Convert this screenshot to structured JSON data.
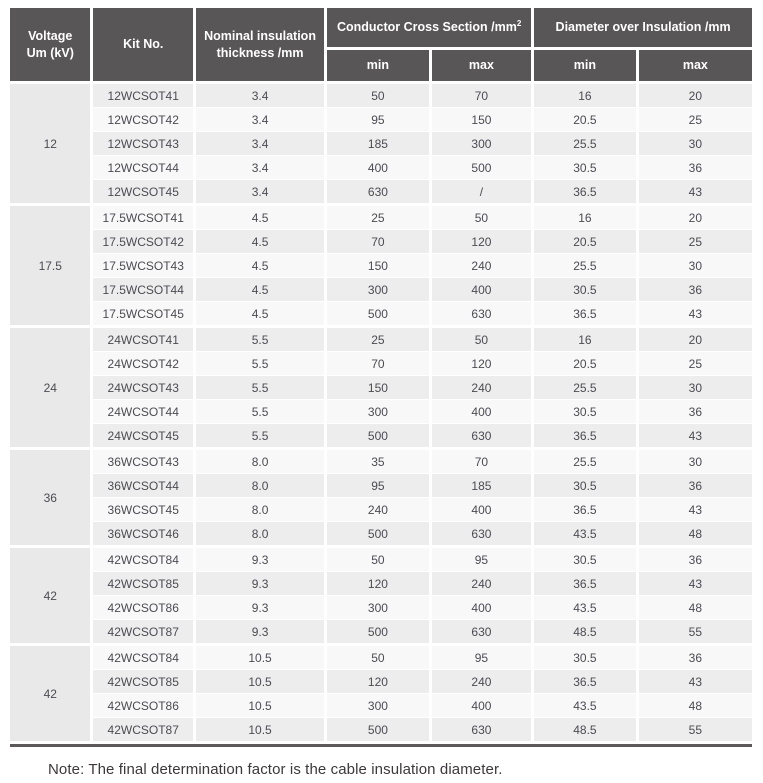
{
  "table": {
    "headers": {
      "voltage_line1": "Voltage",
      "voltage_line2": "Um (kV)",
      "kit_no": "Kit No.",
      "nominal_line1": "Nominal insulation",
      "nominal_line2": "thickness /mm",
      "conductor_group": "Conductor Cross Section /mm",
      "conductor_sup": "2",
      "diameter_group": "Diameter over Insulation /mm",
      "min": "min",
      "max": "max"
    },
    "groups": [
      {
        "voltage": "12",
        "rows": [
          {
            "kit": "12WCSOT41",
            "thickness": "3.4",
            "cs_min": "50",
            "cs_max": "70",
            "dia_min": "16",
            "dia_max": "20"
          },
          {
            "kit": "12WCSOT42",
            "thickness": "3.4",
            "cs_min": "95",
            "cs_max": "150",
            "dia_min": "20.5",
            "dia_max": "25"
          },
          {
            "kit": "12WCSOT43",
            "thickness": "3.4",
            "cs_min": "185",
            "cs_max": "300",
            "dia_min": "25.5",
            "dia_max": "30"
          },
          {
            "kit": "12WCSOT44",
            "thickness": "3.4",
            "cs_min": "400",
            "cs_max": "500",
            "dia_min": "30.5",
            "dia_max": "36"
          },
          {
            "kit": "12WCSOT45",
            "thickness": "3.4",
            "cs_min": "630",
            "cs_max": "/",
            "dia_min": "36.5",
            "dia_max": "43"
          }
        ]
      },
      {
        "voltage": "17.5",
        "rows": [
          {
            "kit": "17.5WCSOT41",
            "thickness": "4.5",
            "cs_min": "25",
            "cs_max": "50",
            "dia_min": "16",
            "dia_max": "20"
          },
          {
            "kit": "17.5WCSOT42",
            "thickness": "4.5",
            "cs_min": "70",
            "cs_max": "120",
            "dia_min": "20.5",
            "dia_max": "25"
          },
          {
            "kit": "17.5WCSOT43",
            "thickness": "4.5",
            "cs_min": "150",
            "cs_max": "240",
            "dia_min": "25.5",
            "dia_max": "30"
          },
          {
            "kit": "17.5WCSOT44",
            "thickness": "4.5",
            "cs_min": "300",
            "cs_max": "400",
            "dia_min": "30.5",
            "dia_max": "36"
          },
          {
            "kit": "17.5WCSOT45",
            "thickness": "4.5",
            "cs_min": "500",
            "cs_max": "630",
            "dia_min": "36.5",
            "dia_max": "43"
          }
        ]
      },
      {
        "voltage": "24",
        "rows": [
          {
            "kit": "24WCSOT41",
            "thickness": "5.5",
            "cs_min": "25",
            "cs_max": "50",
            "dia_min": "16",
            "dia_max": "20"
          },
          {
            "kit": "24WCSOT42",
            "thickness": "5.5",
            "cs_min": "70",
            "cs_max": "120",
            "dia_min": "20.5",
            "dia_max": "25"
          },
          {
            "kit": "24WCSOT43",
            "thickness": "5.5",
            "cs_min": "150",
            "cs_max": "240",
            "dia_min": "25.5",
            "dia_max": "30"
          },
          {
            "kit": "24WCSOT44",
            "thickness": "5.5",
            "cs_min": "300",
            "cs_max": "400",
            "dia_min": "30.5",
            "dia_max": "36"
          },
          {
            "kit": "24WCSOT45",
            "thickness": "5.5",
            "cs_min": "500",
            "cs_max": "630",
            "dia_min": "36.5",
            "dia_max": "43"
          }
        ]
      },
      {
        "voltage": "36",
        "rows": [
          {
            "kit": "36WCSOT43",
            "thickness": "8.0",
            "cs_min": "35",
            "cs_max": "70",
            "dia_min": "25.5",
            "dia_max": "30"
          },
          {
            "kit": "36WCSOT44",
            "thickness": "8.0",
            "cs_min": "95",
            "cs_max": "185",
            "dia_min": "30.5",
            "dia_max": "36"
          },
          {
            "kit": "36WCSOT45",
            "thickness": "8.0",
            "cs_min": "240",
            "cs_max": "400",
            "dia_min": "36.5",
            "dia_max": "43"
          },
          {
            "kit": "36WCSOT46",
            "thickness": "8.0",
            "cs_min": "500",
            "cs_max": "630",
            "dia_min": "43.5",
            "dia_max": "48"
          }
        ]
      },
      {
        "voltage": "42",
        "rows": [
          {
            "kit": "42WCSOT84",
            "thickness": "9.3",
            "cs_min": "50",
            "cs_max": "95",
            "dia_min": "30.5",
            "dia_max": "36"
          },
          {
            "kit": "42WCSOT85",
            "thickness": "9.3",
            "cs_min": "120",
            "cs_max": "240",
            "dia_min": "36.5",
            "dia_max": "43"
          },
          {
            "kit": "42WCSOT86",
            "thickness": "9.3",
            "cs_min": "300",
            "cs_max": "400",
            "dia_min": "43.5",
            "dia_max": "48"
          },
          {
            "kit": "42WCSOT87",
            "thickness": "9.3",
            "cs_min": "500",
            "cs_max": "630",
            "dia_min": "48.5",
            "dia_max": "55"
          }
        ]
      },
      {
        "voltage": "42",
        "rows": [
          {
            "kit": "42WCSOT84",
            "thickness": "10.5",
            "cs_min": "50",
            "cs_max": "95",
            "dia_min": "30.5",
            "dia_max": "36"
          },
          {
            "kit": "42WCSOT85",
            "thickness": "10.5",
            "cs_min": "120",
            "cs_max": "240",
            "dia_min": "36.5",
            "dia_max": "43"
          },
          {
            "kit": "42WCSOT86",
            "thickness": "10.5",
            "cs_min": "300",
            "cs_max": "400",
            "dia_min": "43.5",
            "dia_max": "48"
          },
          {
            "kit": "42WCSOT87",
            "thickness": "10.5",
            "cs_min": "500",
            "cs_max": "630",
            "dia_min": "48.5",
            "dia_max": "55"
          }
        ]
      }
    ]
  },
  "colors": {
    "header_bg": "#595657",
    "stripe_dark": "#ededed",
    "stripe_light": "#f8f8f8",
    "voltage_cell_bg": "#e9e9e9",
    "bottom_rule": "#5b595a"
  },
  "note": "Note: The final determination factor is the cable insulation diameter."
}
